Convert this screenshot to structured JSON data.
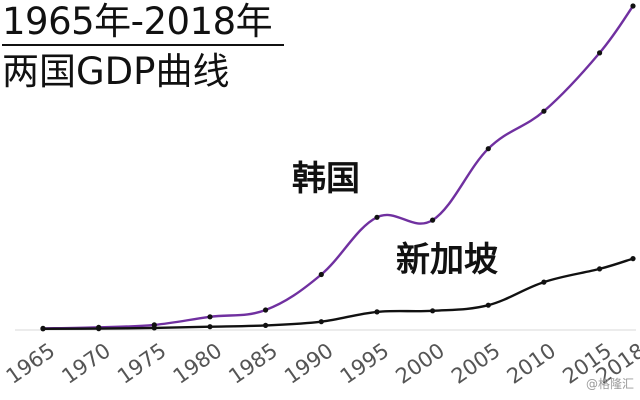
{
  "header": {
    "title_line1": "1965年-2018年",
    "title_line2": "两国GDP曲线"
  },
  "watermark": "@格隆汇",
  "colors": {
    "korea": "#7030a0",
    "singapore": "#111111",
    "baseline": "#d9d9d9",
    "marker": "#111111"
  },
  "chart_data": {
    "type": "line",
    "title": "1965年-2018年 两国GDP曲线",
    "xlabel": "",
    "ylabel": "",
    "x": [
      1965,
      1970,
      1975,
      1980,
      1985,
      1990,
      1995,
      2000,
      2005,
      2010,
      2015,
      2018
    ],
    "tick_labels": [
      "1965",
      "1970",
      "1975",
      "1980",
      "1985",
      "1990",
      "1995",
      "2000",
      "2005",
      "2010",
      "2015",
      "2018"
    ],
    "ylim": [
      0,
      1720
    ],
    "grid": false,
    "series": [
      {
        "name": "韩国",
        "label": "韩国",
        "values": [
          3,
          9,
          22,
          65,
          101,
          290,
          595,
          580,
          960,
          1160,
          1470,
          1720
        ]
      },
      {
        "name": "新加坡",
        "label": "新加坡",
        "values": [
          1,
          2,
          6,
          12,
          19,
          39,
          91,
          97,
          127,
          250,
          320,
          375
        ]
      }
    ]
  }
}
